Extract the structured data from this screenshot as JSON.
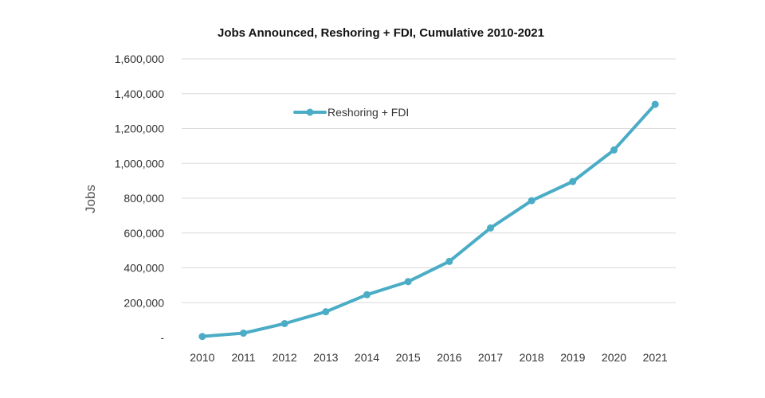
{
  "chart_data": {
    "type": "line",
    "title": "Jobs Announced, Reshoring + FDI, Cumulative 2010-2021",
    "xlabel": "",
    "ylabel": "Jobs",
    "categories": [
      "2010",
      "2011",
      "2012",
      "2013",
      "2014",
      "2015",
      "2016",
      "2017",
      "2018",
      "2019",
      "2020",
      "2021"
    ],
    "series": [
      {
        "name": "Reshoring + FDI",
        "values": [
          6000,
          25000,
          80000,
          148000,
          246000,
          321000,
          437000,
          629000,
          786000,
          896000,
          1077000,
          1339000
        ]
      }
    ],
    "ylim": [
      0,
      1600000
    ],
    "yticks": [
      0,
      200000,
      400000,
      600000,
      800000,
      1000000,
      1200000,
      1400000,
      1600000
    ],
    "ytick_labels": [
      "-",
      "200,000",
      "400,000",
      "600,000",
      "800,000",
      "1,000,000",
      "1,200,000",
      "1,400,000",
      "1,600,000"
    ],
    "grid": true,
    "legend_position": "top-left",
    "colors": {
      "series": "#4BACC6",
      "grid": "#d9d9d9"
    }
  }
}
